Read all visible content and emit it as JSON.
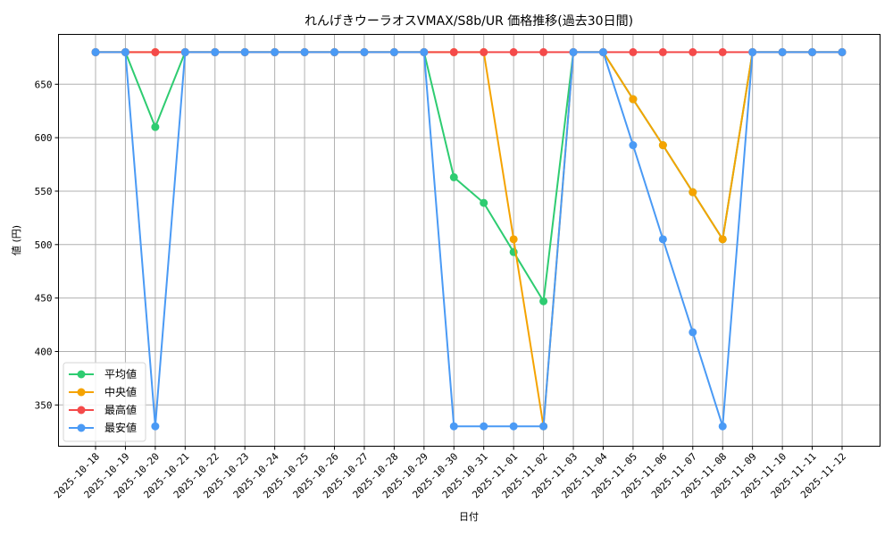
{
  "chart_data": {
    "type": "line",
    "title": "れんげきウーラオスVMAX/S8b/UR 価格推移(過去30日間)",
    "xlabel": "日付",
    "ylabel": "値 (円)",
    "ylim": [
      312,
      694
    ],
    "yticks": [
      350,
      400,
      450,
      500,
      550,
      600,
      650
    ],
    "grid": true,
    "legend_position": "lower left",
    "x": [
      "2025-10-18",
      "2025-10-19",
      "2025-10-20",
      "2025-10-21",
      "2025-10-22",
      "2025-10-23",
      "2025-10-24",
      "2025-10-25",
      "2025-10-26",
      "2025-10-27",
      "2025-10-28",
      "2025-10-29",
      "2025-10-30",
      "2025-10-31",
      "2025-11-01",
      "2025-11-02",
      "2025-11-03",
      "2025-11-04",
      "2025-11-05",
      "2025-11-06",
      "2025-11-07",
      "2025-11-08",
      "2025-11-09",
      "2025-11-10",
      "2025-11-11",
      "2025-11-12"
    ],
    "series": [
      {
        "name": "平均値",
        "color": "#2ecc71",
        "values": [
          680,
          680,
          610,
          680,
          680,
          680,
          680,
          680,
          680,
          680,
          680,
          680,
          563,
          539,
          493,
          447,
          680,
          680,
          636,
          593,
          549,
          505,
          680,
          680,
          680,
          680
        ]
      },
      {
        "name": "中央値",
        "color": "#f5a300",
        "values": [
          680,
          680,
          680,
          680,
          680,
          680,
          680,
          680,
          680,
          680,
          680,
          680,
          680,
          680,
          505,
          330,
          680,
          680,
          636,
          593,
          549,
          505,
          680,
          680,
          680,
          680
        ]
      },
      {
        "name": "最高値",
        "color": "#f44a4a",
        "values": [
          680,
          680,
          680,
          680,
          680,
          680,
          680,
          680,
          680,
          680,
          680,
          680,
          680,
          680,
          680,
          680,
          680,
          680,
          680,
          680,
          680,
          680,
          680,
          680,
          680,
          680
        ]
      },
      {
        "name": "最安値",
        "color": "#4a9af5",
        "values": [
          680,
          680,
          330,
          680,
          680,
          680,
          680,
          680,
          680,
          680,
          680,
          680,
          330,
          330,
          330,
          330,
          680,
          680,
          593,
          505,
          418,
          330,
          680,
          680,
          680,
          680
        ]
      }
    ]
  }
}
